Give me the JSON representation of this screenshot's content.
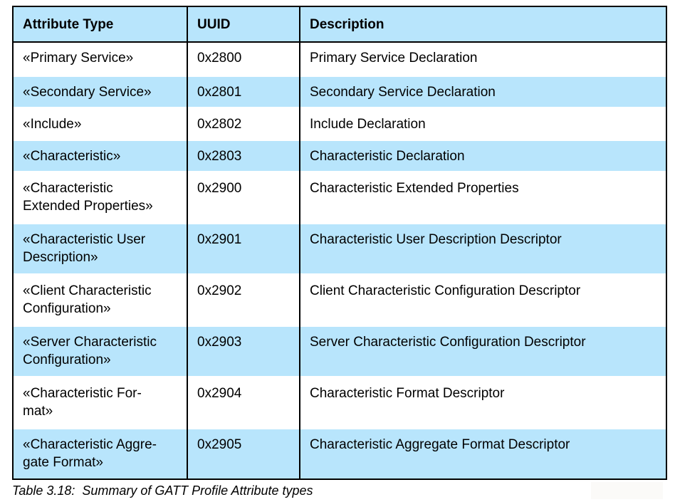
{
  "colors": {
    "header_bg": "#b8e5fc",
    "alt_row_bg": "#b8e5fc",
    "border": "#000000",
    "text": "#000000"
  },
  "table": {
    "columns": [
      {
        "label": "Attribute Type"
      },
      {
        "label": "UUID"
      },
      {
        "label": "Description"
      }
    ],
    "rows": [
      {
        "type": "«Primary Service»",
        "uuid": "0x2800",
        "description": "Primary Service Declaration"
      },
      {
        "type": "«Secondary Service»",
        "uuid": "0x2801",
        "description": "Secondary Service Declaration"
      },
      {
        "type": "«Include»",
        "uuid": "0x2802",
        "description": "Include Declaration"
      },
      {
        "type": "«Characteristic»",
        "uuid": "0x2803",
        "description": "Characteristic Declaration"
      },
      {
        "type": "«Characteristic\nExtended Properties»",
        "uuid": "0x2900",
        "description": "Characteristic Extended Properties"
      },
      {
        "type": "«Characteristic User\nDescription»",
        "uuid": "0x2901",
        "description": "Characteristic User Description Descriptor"
      },
      {
        "type": "«Client Characteristic\nConfiguration»",
        "uuid": "0x2902",
        "description": "Client Characteristic Configuration Descriptor"
      },
      {
        "type": "«Server Characteristic\nConfiguration»",
        "uuid": "0x2903",
        "description": "Server Characteristic Configuration Descriptor"
      },
      {
        "type": "«Characteristic For-\nmat»",
        "uuid": "0x2904",
        "description": "Characteristic Format Descriptor"
      },
      {
        "type": "«Characteristic Aggre-\ngate Format»",
        "uuid": "0x2905",
        "description": "Characteristic Aggregate Format Descriptor"
      }
    ],
    "caption": "Table 3.18:  Summary of GATT Profile Attribute types"
  }
}
